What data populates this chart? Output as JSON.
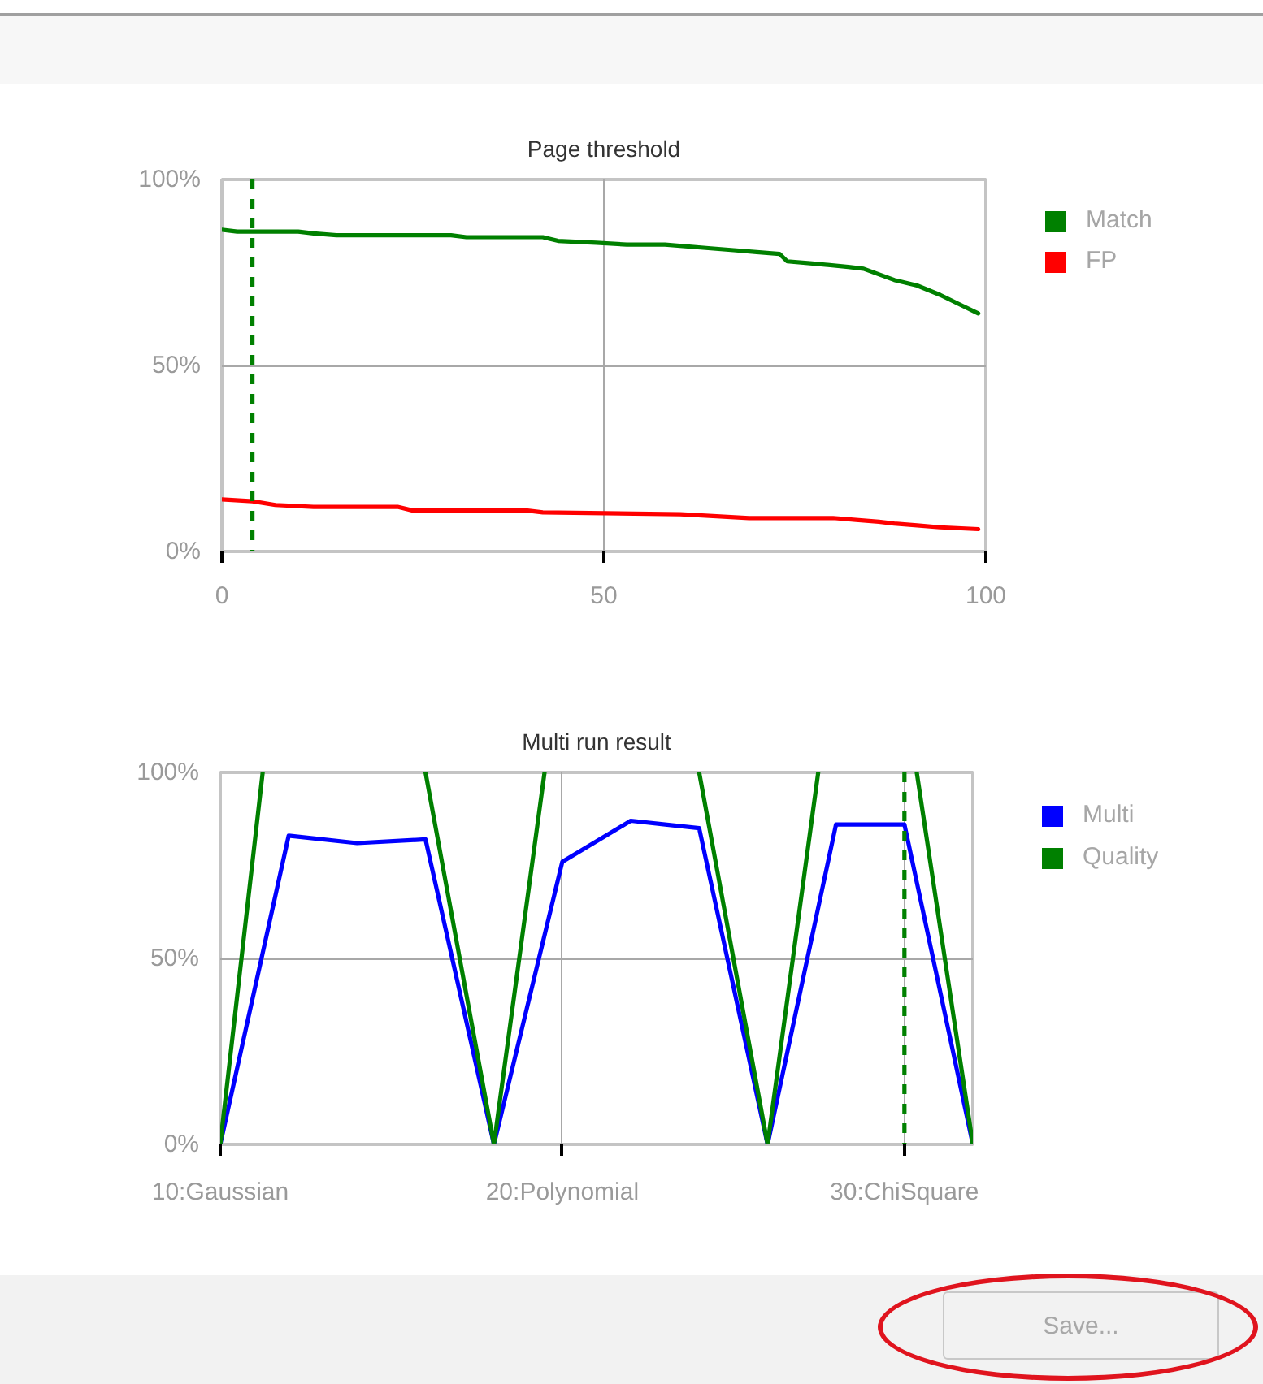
{
  "chart_data": [
    {
      "type": "line",
      "title": "Page threshold",
      "series": [
        {
          "name": "Match",
          "color": "#008000",
          "x": [
            0,
            2,
            10,
            12,
            15,
            30,
            32,
            42,
            44,
            49,
            53,
            58,
            64,
            67,
            70,
            73,
            74,
            77,
            82,
            84,
            88,
            91,
            94,
            97,
            99
          ],
          "values": [
            86.5,
            86,
            86,
            85.5,
            85,
            85,
            84.5,
            84.5,
            83.5,
            83,
            82.5,
            82.5,
            81.5,
            81,
            80.5,
            80,
            78,
            77.5,
            76.5,
            76,
            73,
            71.5,
            69,
            66,
            64
          ]
        },
        {
          "name": "FP",
          "color": "#ff0000",
          "x": [
            0,
            4,
            7,
            12,
            23,
            25,
            40,
            42,
            60,
            69,
            80,
            83,
            86,
            88,
            91,
            94,
            99
          ],
          "values": [
            14,
            13.5,
            12.5,
            12,
            12,
            11,
            11,
            10.5,
            10,
            9,
            9,
            8.5,
            8,
            7.5,
            7,
            6.5,
            6
          ]
        }
      ],
      "xlim": [
        0,
        100
      ],
      "xticks": [
        0,
        50,
        100
      ],
      "ylim": [
        0,
        100
      ],
      "yticks": [
        {
          "value": 0,
          "label": "0%"
        },
        {
          "value": 50,
          "label": "50%"
        },
        {
          "value": 100,
          "label": "100%"
        }
      ],
      "ref_lines": [
        {
          "axis": "x",
          "value": 4,
          "color": "#008000",
          "line_style": "dashed"
        }
      ],
      "grid": true,
      "legend": "top right"
    },
    {
      "type": "line",
      "title": "Multi run result",
      "series": [
        {
          "name": "Multi",
          "color": "#0000ff",
          "x": [
            10,
            12,
            14,
            16,
            18,
            20,
            22,
            24,
            26,
            28,
            30,
            32
          ],
          "values": [
            0,
            83,
            81,
            82,
            0,
            76,
            87,
            85,
            0,
            86,
            86,
            0
          ]
        },
        {
          "name": "Quality",
          "color": "#008000",
          "x": [
            10,
            11.24,
            12,
            16,
            18,
            19.48,
            22,
            24,
            26,
            27.48,
            29,
            30.36,
            32
          ],
          "values": [
            0,
            100,
            null,
            100,
            0,
            100,
            null,
            100,
            0,
            100,
            null,
            100,
            0
          ]
        }
      ],
      "xlim": [
        10,
        32
      ],
      "xticks": [
        {
          "value": 10,
          "label": "10:Gaussian"
        },
        {
          "value": 20,
          "label": "20:Polynomial"
        },
        {
          "value": 30,
          "label": "30:ChiSquare"
        }
      ],
      "ylim": [
        0,
        100
      ],
      "yticks": [
        {
          "value": 0,
          "label": "0%"
        },
        {
          "value": 50,
          "label": "50%"
        },
        {
          "value": 100,
          "label": "100%"
        }
      ],
      "ref_lines": [
        {
          "axis": "x",
          "value": 30,
          "color": "#008000",
          "line_style": "dashed"
        }
      ],
      "grid": true,
      "legend": "top right"
    },
    {
      "type": "other",
      "annotations": [
        "Save..."
      ]
    }
  ]
}
